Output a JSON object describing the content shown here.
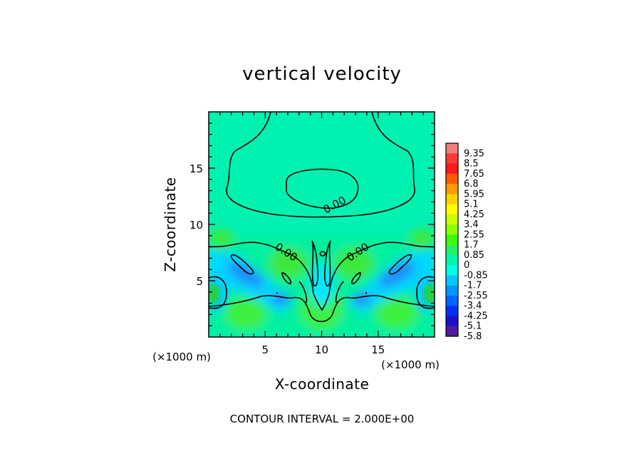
{
  "chart_data": {
    "type": "heatmap",
    "title": "vertical velocity",
    "xlabel": "X-coordinate",
    "ylabel": "Z-coordinate",
    "x_unit": "(×1000 m)",
    "y_unit": "(×1000 m)",
    "xlim": [
      0,
      20
    ],
    "ylim": [
      0,
      20
    ],
    "x_ticks": [
      5,
      10,
      15
    ],
    "y_ticks": [
      5,
      10,
      15
    ],
    "colorbar": {
      "labels": [
        "9.35",
        "8.5",
        "7.65",
        "6.8",
        "5.95",
        "5.1",
        "4.25",
        "3.4",
        "2.55",
        "1.7",
        "0.85",
        "0",
        "-0.85",
        "-1.7",
        "-2.55",
        "-3.4",
        "-4.25",
        "-5.1",
        "-5.8"
      ],
      "colors": [
        "#f08080",
        "#ff3a3a",
        "#ff1a1a",
        "#ff5a00",
        "#ff9a00",
        "#ffd200",
        "#ffff00",
        "#c8ff00",
        "#8cff00",
        "#3cff00",
        "#22f06a",
        "#00f5b0",
        "#00ffe8",
        "#00c8ff",
        "#0096ff",
        "#0064ff",
        "#0032f0",
        "#1e10c8",
        "#501e9a"
      ]
    },
    "contour_labels": [
      {
        "text": "0.00",
        "x": 10.8,
        "z": 11.8
      },
      {
        "text": "0.00",
        "x": 6.9,
        "z": 7.3
      },
      {
        "text": "0.00",
        "x": 13.4,
        "z": 7.3
      }
    ],
    "note": "CONTOUR INTERVAL = 2.000E+00"
  }
}
